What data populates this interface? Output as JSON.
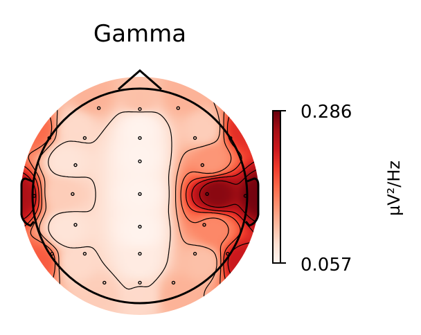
{
  "chart_data": {
    "type": "heatmap",
    "subtype": "eeg-topomap",
    "title": "Gamma",
    "colormap": "Reds",
    "colorbar": {
      "label": "µV²/Hz",
      "min": 0.057,
      "max": 0.286,
      "tick_labels": [
        "0.286",
        "0.057"
      ],
      "placement": "right"
    },
    "sensors": [
      {
        "x": -0.44,
        "y": 0.94,
        "v": 0.12
      },
      {
        "x": 0.0,
        "y": 0.93,
        "v": 0.11
      },
      {
        "x": 0.41,
        "y": 0.94,
        "v": 0.12
      },
      {
        "x": -0.97,
        "y": 0.62,
        "v": 0.17
      },
      {
        "x": -0.59,
        "y": 0.62,
        "v": 0.09
      },
      {
        "x": 0.0,
        "y": 0.62,
        "v": 0.06
      },
      {
        "x": 0.59,
        "y": 0.62,
        "v": 0.1
      },
      {
        "x": 0.97,
        "y": 0.62,
        "v": 0.21
      },
      {
        "x": -0.69,
        "y": 0.33,
        "v": 0.08
      },
      {
        "x": 0.0,
        "y": 0.37,
        "v": 0.06
      },
      {
        "x": 0.67,
        "y": 0.33,
        "v": 0.14
      },
      {
        "x": -1.13,
        "y": 0.0,
        "v": 0.25
      },
      {
        "x": -0.72,
        "y": 0.02,
        "v": 0.1
      },
      {
        "x": 0.0,
        "y": 0.02,
        "v": 0.06
      },
      {
        "x": 0.72,
        "y": 0.02,
        "v": 0.27
      },
      {
        "x": 1.13,
        "y": 0.0,
        "v": 0.28
      },
      {
        "x": -0.69,
        "y": -0.31,
        "v": 0.08
      },
      {
        "x": 0.0,
        "y": -0.33,
        "v": 0.06
      },
      {
        "x": 0.69,
        "y": -0.31,
        "v": 0.15
      },
      {
        "x": -0.94,
        "y": -0.62,
        "v": 0.18
      },
      {
        "x": -0.59,
        "y": -0.62,
        "v": 0.09
      },
      {
        "x": 0.0,
        "y": -0.62,
        "v": 0.07
      },
      {
        "x": 0.59,
        "y": -0.62,
        "v": 0.11
      },
      {
        "x": 0.94,
        "y": -0.62,
        "v": 0.23
      },
      {
        "x": -0.38,
        "y": -0.93,
        "v": 0.1
      },
      {
        "x": 0.0,
        "y": -0.93,
        "v": 0.09
      },
      {
        "x": 0.36,
        "y": -0.93,
        "v": 0.12
      }
    ],
    "contour_levels": 6
  }
}
